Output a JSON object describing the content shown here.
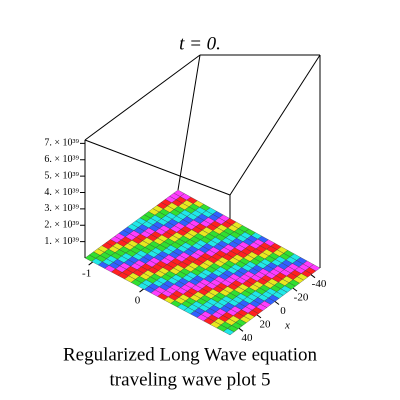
{
  "chart_data": {
    "type": "surface",
    "title": "t = 0.",
    "caption": [
      "Regularized Long Wave equation",
      "traveling wave plot 5"
    ],
    "xlabel": "x",
    "xlim": [
      -50,
      50
    ],
    "xticks": [
      -40,
      -20,
      0,
      20,
      40
    ],
    "ylim": [
      -1.15,
      1.7
    ],
    "yticks": [
      -1,
      0
    ],
    "zlim": [
      0,
      8e+39
    ],
    "zticks": [
      {
        "value": 1e+39,
        "label": "1. × 10³⁹"
      },
      {
        "value": 2e+39,
        "label": "2. × 10³⁹"
      },
      {
        "value": 3e+39,
        "label": "3. × 10³⁹"
      },
      {
        "value": 4e+39,
        "label": "4. × 10³⁹"
      },
      {
        "value": 5e+39,
        "label": "5. × 10³⁹"
      },
      {
        "value": 6e+39,
        "label": "6. × 10³⁹"
      },
      {
        "value": 7e+39,
        "label": "7. × 10³⁹"
      }
    ],
    "colors": [
      "#ff3cff",
      "#ff2020",
      "#e8e820",
      "#30e030",
      "#20e8e8",
      "#3060ff"
    ]
  }
}
